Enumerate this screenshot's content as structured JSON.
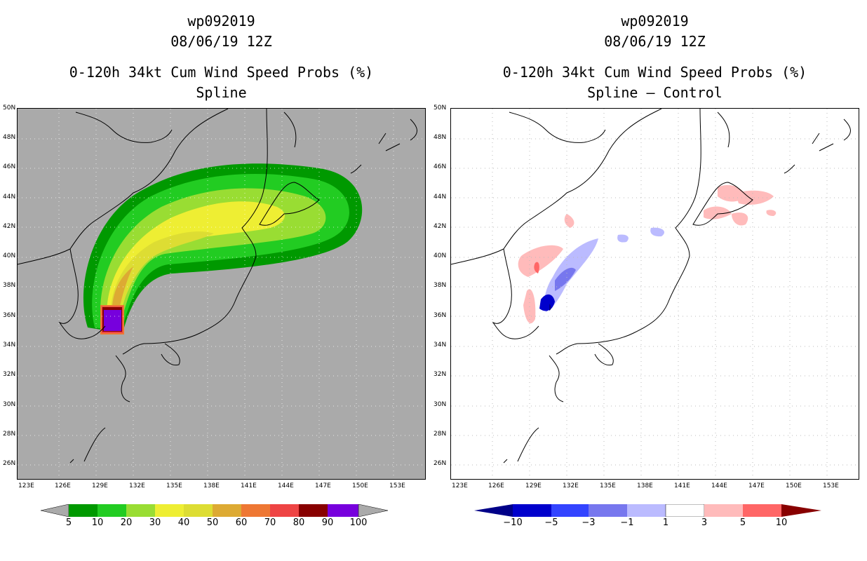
{
  "left_panel": {
    "storm_id": "wp092019",
    "datetime": "08/06/19 12Z",
    "title": "0-120h 34kt Cum Wind Speed Probs (%)",
    "subtitle": "Spline",
    "colorbar_labels": [
      "5",
      "10",
      "20",
      "30",
      "40",
      "50",
      "60",
      "70",
      "80",
      "90",
      "100"
    ],
    "colorbar_colors": [
      "#009900",
      "#22cc22",
      "#99dd33",
      "#eeee33",
      "#dddd33",
      "#ddaa33",
      "#ee7733",
      "#ee4444",
      "#880000",
      "#7700dd"
    ],
    "background_color": "#aaaaaa"
  },
  "right_panel": {
    "storm_id": "wp092019",
    "datetime": "08/06/19 12Z",
    "title": "0-120h 34kt Cum Wind Speed Probs (%)",
    "subtitle": "Spline – Control",
    "colorbar_labels": [
      "−10",
      "−5",
      "−3",
      "−1",
      "1",
      "3",
      "5",
      "10"
    ],
    "colorbar_colors": [
      "#0000cc",
      "#3344ff",
      "#7777ee",
      "#bbbbff",
      "#ffffff",
      "#ffbbbb",
      "#ff6666",
      "#ff0000"
    ],
    "end_colors": [
      "#000088",
      "#880000"
    ]
  },
  "lat_labels": [
    "50N",
    "48N",
    "46N",
    "44N",
    "42N",
    "40N",
    "38N",
    "36N",
    "34N",
    "32N",
    "30N",
    "28N",
    "26N"
  ],
  "lon_labels": [
    "123E",
    "126E",
    "129E",
    "132E",
    "135E",
    "138E",
    "141E",
    "144E",
    "147E",
    "150E",
    "153E"
  ]
}
